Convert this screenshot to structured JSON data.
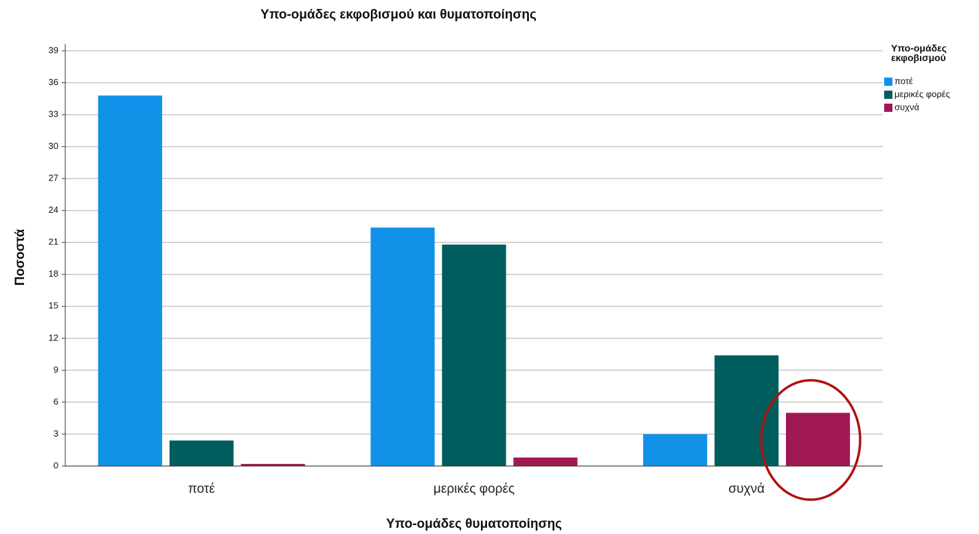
{
  "chart_data": {
    "type": "bar",
    "title": "Υπο-ομάδες εκφοβισμού και θυματοποίησης",
    "x_label": "Υπο-ομάδες θυματοποίησης",
    "y_label": "Ποσοστά",
    "legend_title": "Υπο-ομάδες εκφοβισμού",
    "categories": [
      "ποτέ",
      "μερικές φορές",
      "συχνά"
    ],
    "series": [
      {
        "name": "ποτέ",
        "color": "#1192e8",
        "values": [
          34.8,
          22.4,
          3.0
        ]
      },
      {
        "name": "μερικές φορές",
        "color": "#005d5d",
        "values": [
          2.4,
          20.8,
          10.4
        ]
      },
      {
        "name": "συχνά",
        "color": "#9f1853",
        "values": [
          0.2,
          0.8,
          5.0
        ]
      }
    ],
    "ylim": [
      0,
      39
    ],
    "yticks": [
      0,
      3,
      6,
      9,
      12,
      15,
      18,
      21,
      24,
      27,
      30,
      33,
      36,
      39
    ],
    "grid": true,
    "legend": "right"
  }
}
